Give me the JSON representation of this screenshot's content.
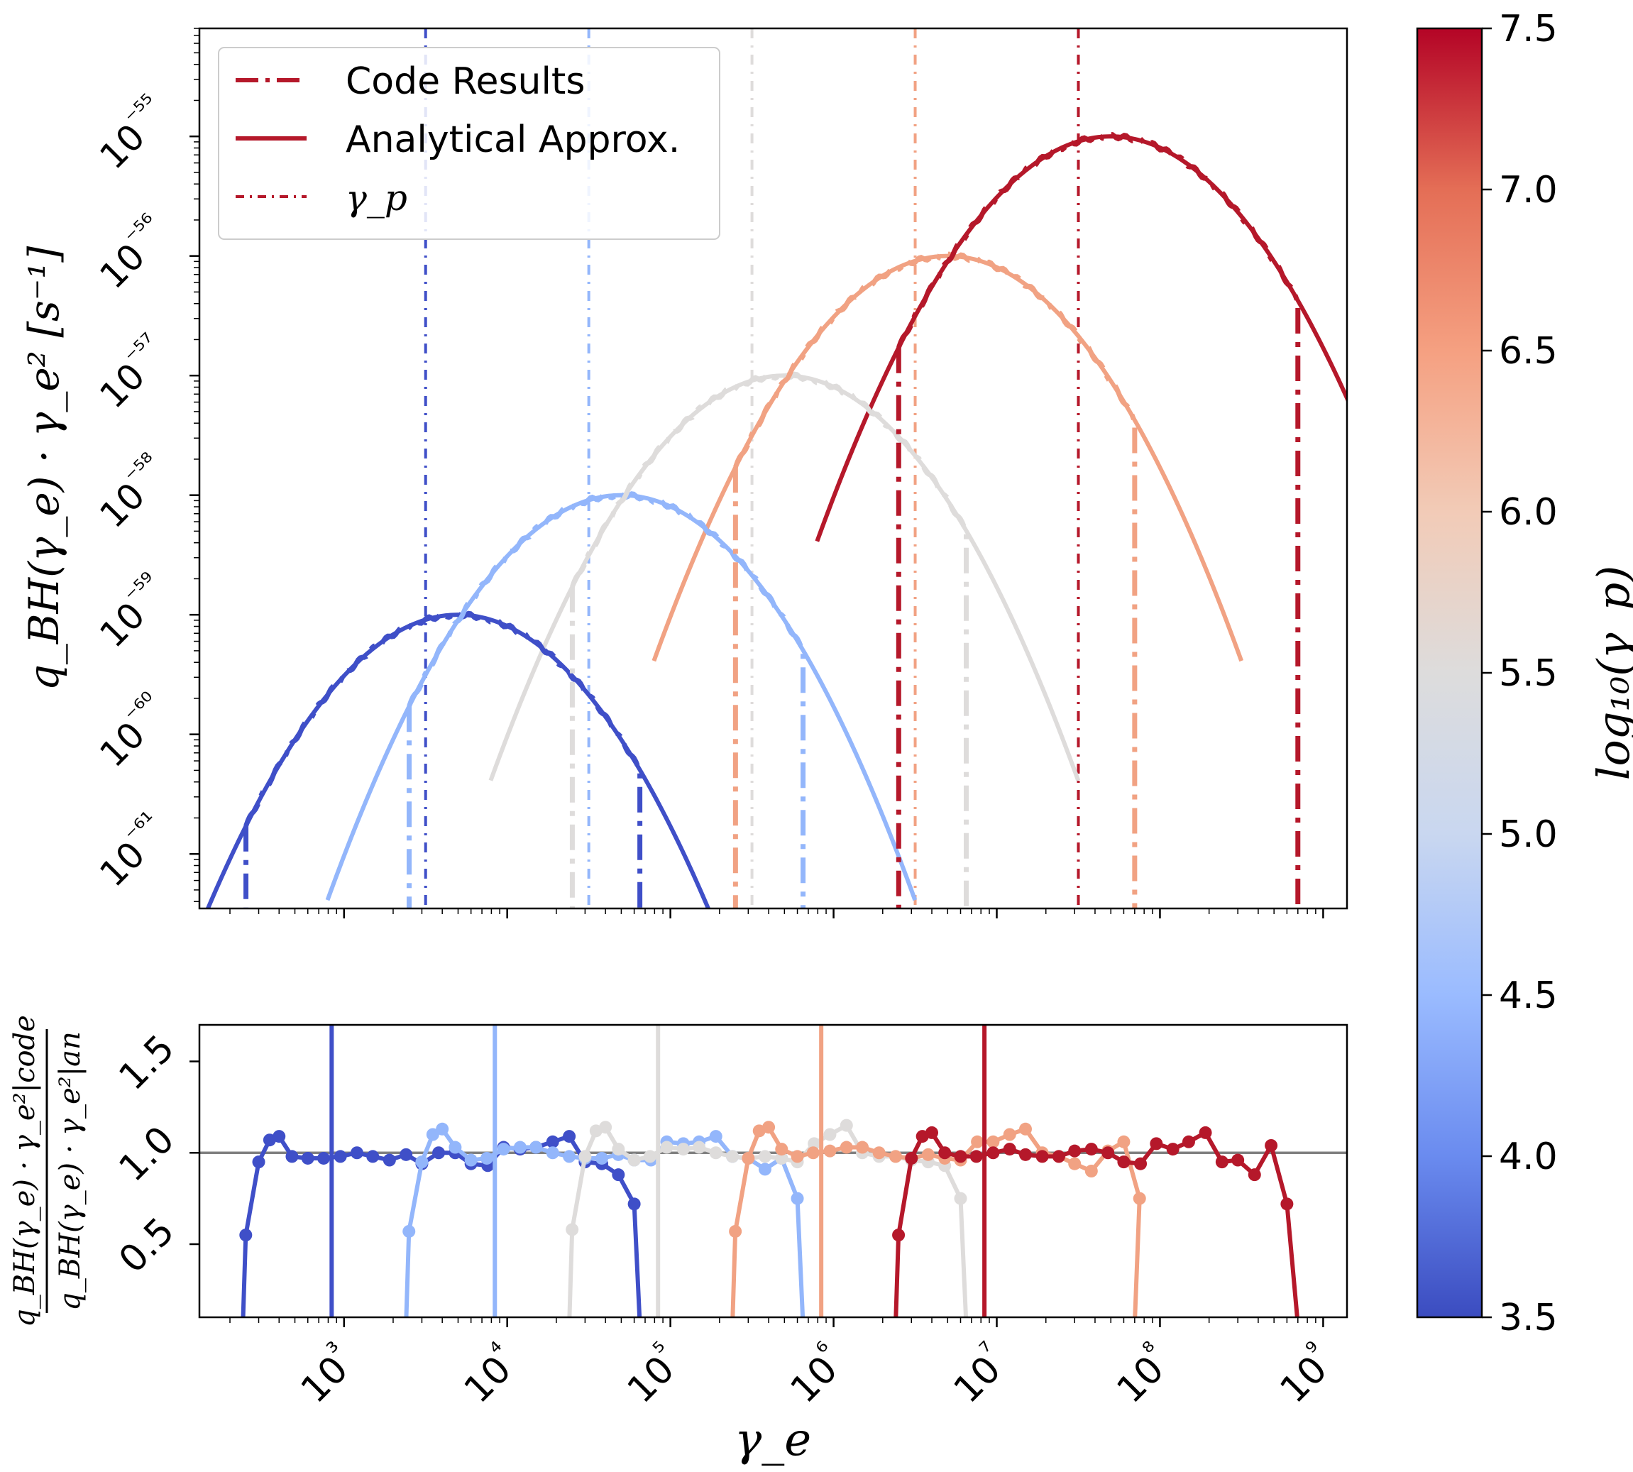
{
  "chart_data": [
    {
      "type": "line",
      "panel": "top",
      "xscale": "log",
      "yscale": "log",
      "xlim": [
        130,
        1400000000.0
      ],
      "ylim": [
        3.5e-62,
        8e-55
      ],
      "ylabel": "q_BH(γ_e) · γ_e² [s⁻¹]",
      "ytick_labels": [
        "10⁻⁶¹",
        "10⁻⁶⁰",
        "10⁻⁵⁹",
        "10⁻⁵⁸",
        "10⁻⁵⁷",
        "10⁻⁵⁶",
        "10⁻⁵⁵"
      ],
      "ytick_values": [
        1e-61,
        1e-60,
        1e-59,
        1e-58,
        1e-57,
        1e-56,
        1e-55
      ],
      "legend": {
        "placement": "upper-left",
        "entries": [
          {
            "label": "Code Results",
            "style": "dashdot"
          },
          {
            "label": "Analytical Approx.",
            "style": "solid"
          },
          {
            "label": "γ_p",
            "style": "dotted"
          }
        ]
      },
      "series": [
        {
          "log10_gamma_p": 3.5,
          "color": "#3f4fc8",
          "gamma_p": 3162,
          "peak_x": 5000,
          "peak_y": 1e-59,
          "code_cutoff_x": 65000
        },
        {
          "log10_gamma_p": 4.5,
          "color": "#93b6fb",
          "gamma_p": 31623,
          "peak_x": 50000,
          "peak_y": 1e-58,
          "code_cutoff_x": 650000
        },
        {
          "log10_gamma_p": 5.5,
          "color": "#dedcdb",
          "gamma_p": 316228,
          "peak_x": 500000,
          "peak_y": 1e-57,
          "code_cutoff_x": 6500000
        },
        {
          "log10_gamma_p": 6.5,
          "color": "#f1a283",
          "gamma_p": 3162278,
          "peak_x": 5000000,
          "peak_y": 1e-56,
          "code_cutoff_x": 70000000
        },
        {
          "log10_gamma_p": 7.5,
          "color": "#b5182a",
          "gamma_p": 31622777,
          "peak_x": 50000000,
          "peak_y": 1e-55,
          "code_cutoff_x": 700000000
        }
      ]
    },
    {
      "type": "line",
      "panel": "bottom",
      "xscale": "log",
      "xlim": [
        130,
        1400000000.0
      ],
      "ylim": [
        0.1,
        1.7
      ],
      "xlabel": "γ_e",
      "ylabel_num": "q_BH(γ_e) · γ_e²|code",
      "ylabel_den": "q_BH(γ_e) · γ_e²|an",
      "xtick_labels": [
        "10³",
        "10⁴",
        "10⁵",
        "10⁶",
        "10⁷",
        "10⁸",
        "10⁹"
      ],
      "xtick_values": [
        1000,
        10000,
        100000,
        1000000,
        10000000,
        100000000,
        1000000000
      ],
      "ytick_labels": [
        "0.5",
        "1.0",
        "1.5"
      ],
      "ytick_values": [
        0.5,
        1.0,
        1.5
      ],
      "reference_line": 1.0,
      "series": [
        {
          "log10_gamma_p": 3.5,
          "color": "#3f4fc8",
          "ratio_start_x": 240,
          "ratio_end_x": 65000,
          "x": [
            250,
            300,
            350,
            400,
            480,
            600,
            750,
            950,
            1200,
            1500,
            1900,
            2400,
            3000,
            3800,
            4800,
            6000,
            7600,
            9500,
            12000,
            15000,
            19000,
            24000,
            30000,
            38000,
            48000,
            60000
          ],
          "y": [
            0.55,
            0.95,
            1.07,
            1.09,
            0.98,
            0.97,
            0.97,
            0.98,
            1.0,
            0.98,
            0.96,
            0.99,
            0.94,
            1.0,
            1.0,
            0.94,
            0.93,
            1.03,
            1.02,
            1.03,
            1.06,
            1.09,
            0.95,
            0.94,
            0.88,
            0.72
          ]
        },
        {
          "log10_gamma_p": 4.5,
          "color": "#93b6fb",
          "ratio_start_x": 2400,
          "ratio_end_x": 650000,
          "x": [
            2500,
            3000,
            3500,
            4000,
            4800,
            6000,
            7500,
            9500,
            12000,
            15000,
            19000,
            24000,
            30000,
            38000,
            48000,
            60000,
            76000,
            95000,
            120000,
            150000,
            190000,
            240000,
            300000,
            380000,
            480000,
            600000
          ],
          "y": [
            0.57,
            0.95,
            1.1,
            1.13,
            1.03,
            0.96,
            0.97,
            1.02,
            1.03,
            1.03,
            1.0,
            0.98,
            0.97,
            0.97,
            0.99,
            0.96,
            0.96,
            1.06,
            1.05,
            1.06,
            1.09,
            0.98,
            0.97,
            0.91,
            0.97,
            0.75
          ]
        },
        {
          "log10_gamma_p": 5.5,
          "color": "#dedcdb",
          "ratio_start_x": 24000,
          "ratio_end_x": 6500000,
          "x": [
            25000,
            30000,
            35000,
            40000,
            48000,
            60000,
            75000,
            95000,
            120000,
            150000,
            190000,
            240000,
            300000,
            380000,
            480000,
            600000,
            760000,
            950000,
            1200000,
            1500000,
            1900000,
            2400000,
            3000000,
            3800000,
            4800000,
            6000000
          ],
          "y": [
            0.58,
            0.98,
            1.12,
            1.14,
            1.02,
            0.96,
            0.98,
            1.03,
            1.02,
            1.03,
            1.0,
            0.98,
            0.97,
            0.98,
            0.97,
            0.95,
            1.05,
            1.1,
            1.15,
            1.0,
            0.98,
            0.98,
            0.96,
            0.95,
            0.93,
            0.75
          ]
        },
        {
          "log10_gamma_p": 6.5,
          "color": "#f1a283",
          "ratio_start_x": 240000,
          "ratio_end_x": 70000000,
          "x": [
            250000,
            300000,
            350000,
            400000,
            480000,
            600000,
            750000,
            950000,
            1200000,
            1500000,
            1900000,
            2400000,
            3000000,
            3800000,
            4800000,
            6000000,
            7600000,
            9500000,
            12000000,
            15000000,
            19000000,
            24000000,
            30000000,
            38000000,
            48000000,
            60000000,
            75000000
          ],
          "y": [
            0.57,
            0.97,
            1.12,
            1.14,
            1.02,
            0.98,
            1.0,
            1.01,
            1.03,
            1.03,
            1.0,
            0.98,
            0.97,
            0.99,
            0.97,
            0.96,
            1.06,
            1.06,
            1.1,
            1.13,
            1.0,
            0.98,
            0.94,
            0.9,
            1.01,
            1.06,
            0.75
          ]
        },
        {
          "log10_gamma_p": 7.5,
          "color": "#b5182a",
          "ratio_start_x": 2400000,
          "ratio_end_x": 700000000,
          "x": [
            2500000,
            3000000,
            3500000,
            4000000,
            4800000,
            6000000,
            7500000,
            9500000,
            12000000,
            15000000,
            19000000,
            24000000,
            30000000,
            38000000,
            48000000,
            60000000,
            76000000,
            95000000,
            120000000,
            150000000,
            190000000,
            240000000,
            300000000,
            380000000,
            480000000,
            600000000
          ],
          "y": [
            0.55,
            0.97,
            1.09,
            1.11,
            1.0,
            0.98,
            0.98,
            1.0,
            1.02,
            0.99,
            0.98,
            0.98,
            1.01,
            1.02,
            1.0,
            0.95,
            0.94,
            1.05,
            1.02,
            1.06,
            1.11,
            0.95,
            0.96,
            0.88,
            1.04,
            0.72
          ]
        }
      ]
    },
    {
      "type": "colorbar",
      "label": "log₁₀(γ_p)",
      "range": [
        3.5,
        7.5
      ],
      "tick_labels": [
        "3.5",
        "4.0",
        "4.5",
        "5.0",
        "5.5",
        "6.0",
        "6.5",
        "7.0",
        "7.5"
      ],
      "tick_values": [
        3.5,
        4.0,
        4.5,
        5.0,
        5.5,
        6.0,
        6.5,
        7.0,
        7.5
      ],
      "colormap": "coolwarm",
      "stops": [
        "#3b4cc0",
        "#6a8bef",
        "#9abbff",
        "#c9d7f0",
        "#dddcdc",
        "#f2cbb7",
        "#f5a081",
        "#e46e56",
        "#b40426"
      ]
    }
  ]
}
